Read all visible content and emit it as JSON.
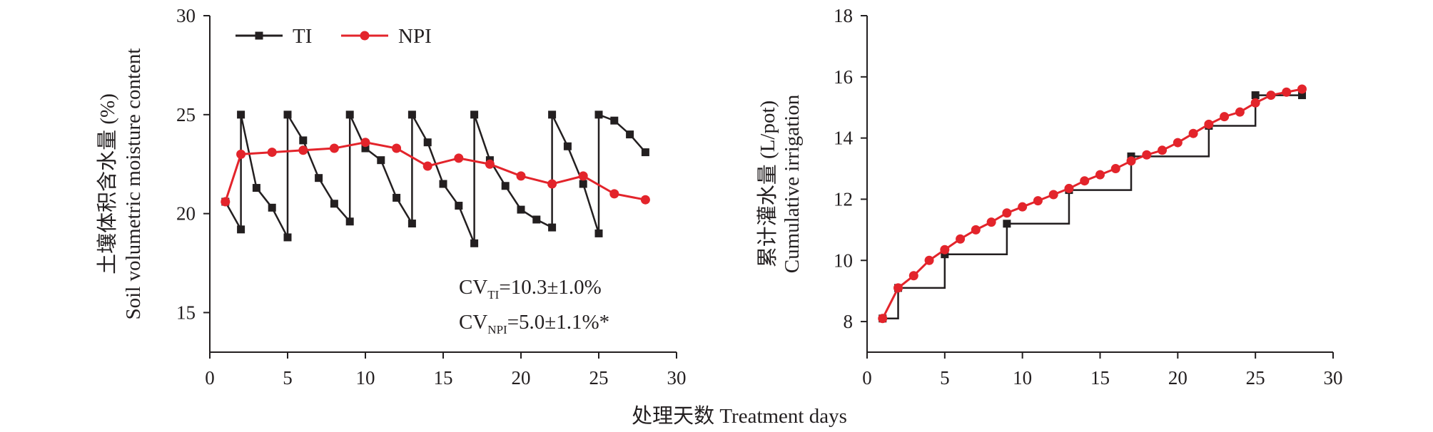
{
  "x_axis_label": "处理天数 Treatment days",
  "colors": {
    "TI": "#231f20",
    "NPI": "#e3242b",
    "axis": "#231f20"
  },
  "chart_data": [
    {
      "type": "line",
      "ylabel_cn": "土壤体积含水量 (%)",
      "ylabel_en": "Soil volumetric moisture content",
      "xlim": [
        0,
        30
      ],
      "ylim": [
        13,
        30
      ],
      "xticks": [
        0,
        5,
        10,
        15,
        20,
        25,
        30
      ],
      "yticks": [
        15,
        20,
        25,
        30
      ],
      "grid": false,
      "legend": {
        "placement": "top-left",
        "entries": [
          "TI",
          "NPI"
        ]
      },
      "annotations": [
        {
          "main": "CV",
          "sub": "TI",
          "rest": "=10.3±1.0%"
        },
        {
          "main": "CV",
          "sub": "NPI",
          "rest": "=5.0±1.1%*"
        }
      ],
      "series": [
        {
          "name": "TI",
          "marker": "square",
          "points": [
            [
              1,
              20.6
            ],
            [
              2,
              19.2
            ],
            [
              2,
              25.0
            ],
            [
              3,
              21.3
            ],
            [
              4,
              20.3
            ],
            [
              5,
              18.8
            ],
            [
              5,
              25.0
            ],
            [
              6,
              23.7
            ],
            [
              7,
              21.8
            ],
            [
              8,
              20.5
            ],
            [
              9,
              19.6
            ],
            [
              9,
              25.0
            ],
            [
              10,
              23.3
            ],
            [
              11,
              22.7
            ],
            [
              12,
              20.8
            ],
            [
              13,
              19.5
            ],
            [
              13,
              25.0
            ],
            [
              14,
              23.6
            ],
            [
              15,
              21.5
            ],
            [
              16,
              20.4
            ],
            [
              17,
              18.5
            ],
            [
              17,
              25.0
            ],
            [
              18,
              22.7
            ],
            [
              19,
              21.4
            ],
            [
              20,
              20.2
            ],
            [
              21,
              19.7
            ],
            [
              22,
              19.3
            ],
            [
              22,
              25.0
            ],
            [
              23,
              23.4
            ],
            [
              24,
              21.5
            ],
            [
              25,
              19.0
            ],
            [
              25,
              25.0
            ],
            [
              26,
              24.7
            ],
            [
              27,
              24.0
            ],
            [
              28,
              23.1
            ]
          ]
        },
        {
          "name": "NPI",
          "marker": "circle",
          "points": [
            [
              1,
              20.6
            ],
            [
              2,
              23.0
            ],
            [
              4,
              23.1
            ],
            [
              6,
              23.2
            ],
            [
              8,
              23.3
            ],
            [
              10,
              23.6
            ],
            [
              12,
              23.3
            ],
            [
              14,
              22.4
            ],
            [
              16,
              22.8
            ],
            [
              18,
              22.5
            ],
            [
              20,
              21.9
            ],
            [
              22,
              21.5
            ],
            [
              24,
              21.9
            ],
            [
              26,
              21.0
            ],
            [
              28,
              20.7
            ]
          ]
        }
      ]
    },
    {
      "type": "line",
      "ylabel_cn": "累计灌水量 (L/pot)",
      "ylabel_en": "Cumulative irrigation",
      "xlim": [
        0,
        30
      ],
      "ylim": [
        7,
        18
      ],
      "xticks": [
        0,
        5,
        10,
        15,
        20,
        25,
        30
      ],
      "yticks": [
        8,
        10,
        12,
        14,
        16,
        18
      ],
      "grid": false,
      "series": [
        {
          "name": "TI",
          "marker": "square",
          "step": true,
          "points": [
            [
              1,
              8.1
            ],
            [
              2,
              9.1
            ],
            [
              5,
              10.2
            ],
            [
              9,
              11.2
            ],
            [
              13,
              12.3
            ],
            [
              17,
              13.4
            ],
            [
              22,
              14.4
            ],
            [
              25,
              15.4
            ],
            [
              28,
              15.4
            ]
          ]
        },
        {
          "name": "NPI",
          "marker": "circle",
          "points": [
            [
              1,
              8.1
            ],
            [
              2,
              9.1
            ],
            [
              3,
              9.5
            ],
            [
              4,
              10.0
            ],
            [
              5,
              10.35
            ],
            [
              6,
              10.7
            ],
            [
              7,
              11.0
            ],
            [
              8,
              11.25
            ],
            [
              9,
              11.55
            ],
            [
              10,
              11.75
            ],
            [
              11,
              11.95
            ],
            [
              12,
              12.15
            ],
            [
              13,
              12.35
            ],
            [
              14,
              12.6
            ],
            [
              15,
              12.8
            ],
            [
              16,
              13.0
            ],
            [
              17,
              13.25
            ],
            [
              18,
              13.45
            ],
            [
              19,
              13.6
            ],
            [
              20,
              13.85
            ],
            [
              21,
              14.15
            ],
            [
              22,
              14.45
            ],
            [
              23,
              14.7
            ],
            [
              24,
              14.85
            ],
            [
              25,
              15.15
            ],
            [
              26,
              15.4
            ],
            [
              27,
              15.5
            ],
            [
              28,
              15.6
            ]
          ]
        }
      ]
    }
  ]
}
